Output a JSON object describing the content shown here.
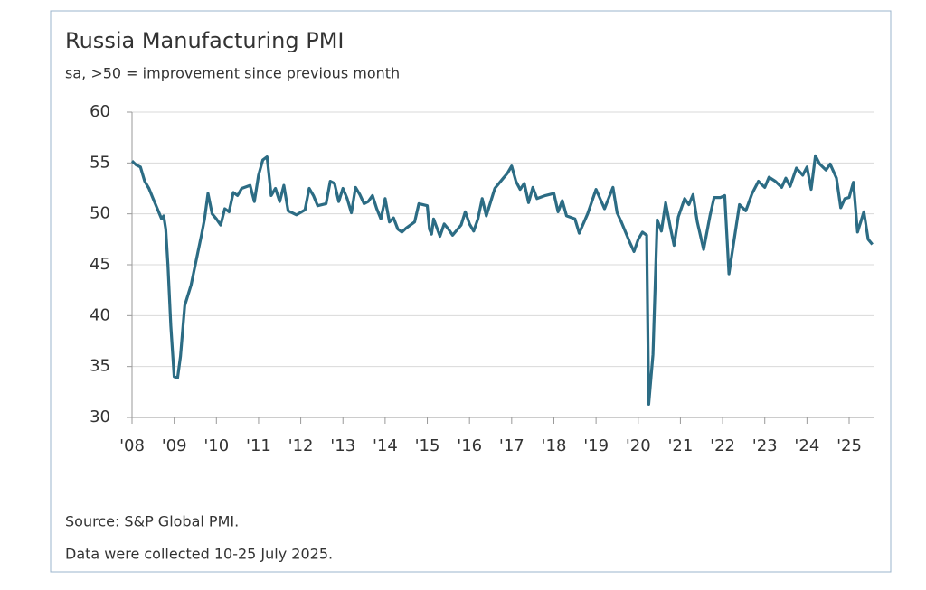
{
  "chart_data": {
    "type": "line",
    "title": "Russia Manufacturing PMI",
    "subtitle": "sa, >50 = improvement since previous month",
    "source": "Source: S&P Global PMI.",
    "note": "Data were collected 10-25 July 2025.",
    "color": "#2c6c84",
    "grid": true,
    "x": [
      2008.0,
      2008.1,
      2008.2,
      2008.3,
      2008.4,
      2008.5,
      2008.6,
      2008.7,
      2008.75,
      2008.8,
      2008.85,
      2008.92,
      2009.0,
      2009.08,
      2009.15,
      2009.25,
      2009.4,
      2009.55,
      2009.65,
      2009.72,
      2009.8,
      2009.9,
      2010.0,
      2010.1,
      2010.2,
      2010.3,
      2010.4,
      2010.5,
      2010.6,
      2010.8,
      2010.9,
      2011.0,
      2011.1,
      2011.2,
      2011.3,
      2011.4,
      2011.5,
      2011.6,
      2011.7,
      2011.9,
      2012.1,
      2012.2,
      2012.3,
      2012.4,
      2012.6,
      2012.7,
      2012.8,
      2012.9,
      2013.0,
      2013.1,
      2013.2,
      2013.3,
      2013.4,
      2013.5,
      2013.6,
      2013.7,
      2013.8,
      2013.9,
      2014.0,
      2014.1,
      2014.2,
      2014.3,
      2014.4,
      2014.5,
      2014.7,
      2014.8,
      2015.0,
      2015.05,
      2015.1,
      2015.15,
      2015.3,
      2015.4,
      2015.5,
      2015.6,
      2015.8,
      2015.9,
      2016.0,
      2016.1,
      2016.2,
      2016.3,
      2016.4,
      2016.6,
      2016.8,
      2016.9,
      2017.0,
      2017.1,
      2017.2,
      2017.3,
      2017.4,
      2017.5,
      2017.6,
      2017.8,
      2018.0,
      2018.1,
      2018.2,
      2018.3,
      2018.5,
      2018.6,
      2018.8,
      2019.0,
      2019.2,
      2019.4,
      2019.5,
      2019.6,
      2019.8,
      2019.9,
      2020.0,
      2020.1,
      2020.2,
      2020.25,
      2020.35,
      2020.45,
      2020.55,
      2020.65,
      2020.75,
      2020.85,
      2020.95,
      2021.1,
      2021.2,
      2021.3,
      2021.4,
      2021.55,
      2021.7,
      2021.8,
      2021.95,
      2022.05,
      2022.15,
      2022.3,
      2022.4,
      2022.55,
      2022.7,
      2022.85,
      2023.0,
      2023.1,
      2023.25,
      2023.4,
      2023.5,
      2023.6,
      2023.75,
      2023.9,
      2024.0,
      2024.1,
      2024.2,
      2024.3,
      2024.45,
      2024.55,
      2024.7,
      2024.8,
      2024.9,
      2025.0,
      2025.1,
      2025.2,
      2025.35,
      2025.45,
      2025.55
    ],
    "values": [
      55.2,
      54.8,
      54.6,
      53.2,
      52.5,
      51.5,
      50.5,
      49.5,
      49.8,
      48.5,
      45,
      39,
      34,
      33.9,
      36,
      41,
      43,
      46,
      48,
      49.5,
      52,
      50,
      49.5,
      48.9,
      50.5,
      50.2,
      52.1,
      51.8,
      52.5,
      52.8,
      51.2,
      53.8,
      55.3,
      55.6,
      51.8,
      52.5,
      51.2,
      52.8,
      50.3,
      49.9,
      50.4,
      52.5,
      51.8,
      50.8,
      51.0,
      53.2,
      53.0,
      51.2,
      52.5,
      51.5,
      50.1,
      52.6,
      51.9,
      51.0,
      51.2,
      51.8,
      50.5,
      49.5,
      51.5,
      49.2,
      49.6,
      48.5,
      48.2,
      48.6,
      49.2,
      51.0,
      50.8,
      48.5,
      48.0,
      49.5,
      47.8,
      49.0,
      48.5,
      47.9,
      48.9,
      50.2,
      49.0,
      48.3,
      49.5,
      51.5,
      49.8,
      52.5,
      53.5,
      54.0,
      54.7,
      53.2,
      52.4,
      53.0,
      51.1,
      52.6,
      51.5,
      51.8,
      52.0,
      50.2,
      51.3,
      49.8,
      49.5,
      48.1,
      50.0,
      52.4,
      50.5,
      52.6,
      50.1,
      49.2,
      47.2,
      46.3,
      47.5,
      48.2,
      47.9,
      31.3,
      36.2,
      49.4,
      48.3,
      51.1,
      48.9,
      46.9,
      49.7,
      51.5,
      50.9,
      51.9,
      49.2,
      46.5,
      49.8,
      51.6,
      51.6,
      51.8,
      44.1,
      48.2,
      50.9,
      50.3,
      52.0,
      53.2,
      52.6,
      53.6,
      53.2,
      52.6,
      53.5,
      52.7,
      54.5,
      53.8,
      54.6,
      52.4,
      55.7,
      54.9,
      54.3,
      54.9,
      53.5,
      50.6,
      51.5,
      51.6,
      53.1,
      48.2,
      50.2,
      47.5,
      47.0
    ],
    "xlim": [
      2008,
      2025.6
    ],
    "xticks": [
      {
        "value": 2008,
        "label": "'08"
      },
      {
        "value": 2009,
        "label": "'09"
      },
      {
        "value": 2010,
        "label": "'10"
      },
      {
        "value": 2011,
        "label": "'11"
      },
      {
        "value": 2012,
        "label": "'12"
      },
      {
        "value": 2013,
        "label": "'13"
      },
      {
        "value": 2014,
        "label": "'14"
      },
      {
        "value": 2015,
        "label": "'15"
      },
      {
        "value": 2016,
        "label": "'16"
      },
      {
        "value": 2017,
        "label": "'17"
      },
      {
        "value": 2018,
        "label": "'18"
      },
      {
        "value": 2019,
        "label": "'19"
      },
      {
        "value": 2020,
        "label": "'20"
      },
      {
        "value": 2021,
        "label": "'21"
      },
      {
        "value": 2022,
        "label": "'22"
      },
      {
        "value": 2023,
        "label": "'23"
      },
      {
        "value": 2024,
        "label": "'24"
      },
      {
        "value": 2025,
        "label": "'25"
      }
    ],
    "ylim": [
      30,
      60
    ],
    "yticks": [
      30,
      35,
      40,
      45,
      50,
      55,
      60
    ]
  }
}
